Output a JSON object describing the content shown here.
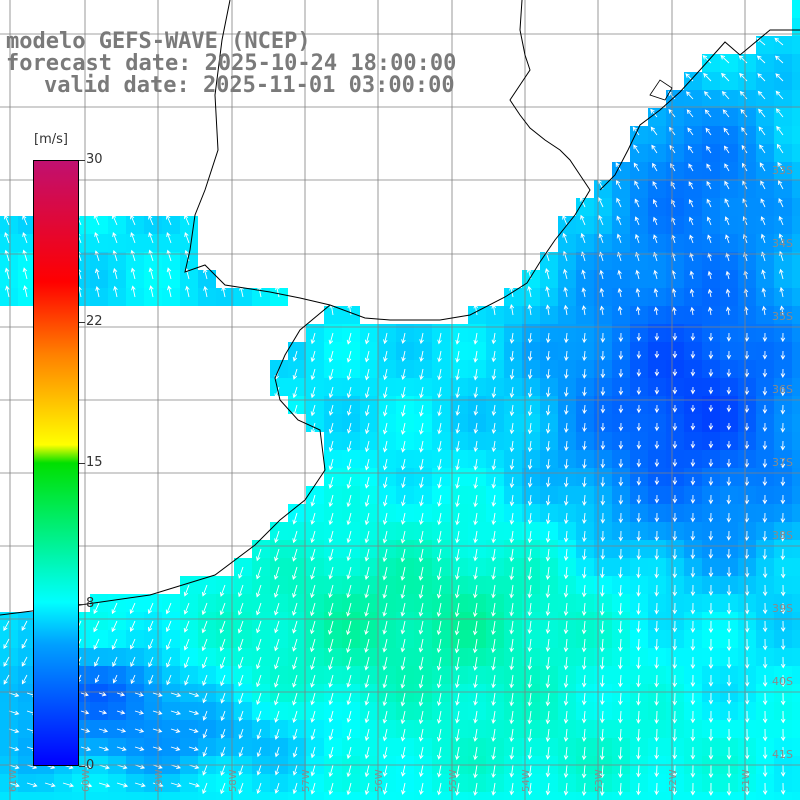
{
  "title": {
    "line1": "modelo GEFS-WAVE (NCEP)",
    "line2": "forecast date: 2025-10-24 18:00:00",
    "line3": "valid date: 2025-11-01 03:00:00"
  },
  "colorbar": {
    "unit": "[m/s]",
    "min": 0,
    "max": 30,
    "ticks": [
      {
        "value": 30,
        "label": "30"
      },
      {
        "value": 22,
        "label": "22"
      },
      {
        "value": 15,
        "label": "15"
      },
      {
        "value": 8,
        "label": "8"
      },
      {
        "value": 0,
        "label": "0"
      }
    ]
  },
  "map": {
    "lon_range": [
      -62,
      -51
    ],
    "lat_range": [
      -42,
      -31
    ],
    "lat_labels": [
      "33S",
      "34S",
      "35S",
      "36S",
      "37S",
      "38S",
      "39S",
      "40S",
      "41S"
    ],
    "lon_labels": [
      "61W",
      "60W",
      "59W",
      "58W",
      "57W",
      "56W",
      "55W",
      "54W",
      "53W",
      "52W",
      "51W"
    ],
    "grid_color": "#808080",
    "coast_color": "#000000",
    "arrow_color": "#ffffff"
  }
}
